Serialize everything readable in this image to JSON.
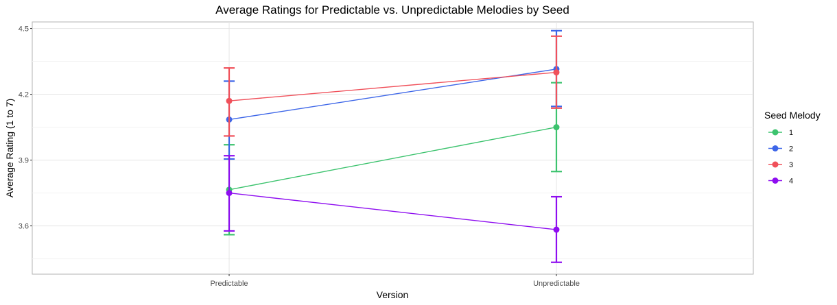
{
  "chart_data": {
    "type": "line",
    "title": "Average Ratings for Predictable vs. Unpredictable Melodies by Seed",
    "xlabel": "Version",
    "ylabel": "Average Rating (1 to 7)",
    "categories": [
      "Predictable",
      "Unpredictable"
    ],
    "ylim": [
      3.38,
      4.53
    ],
    "yticks": [
      3.6,
      3.9,
      4.2,
      4.5
    ],
    "ytick_labels": [
      "3.6",
      "3.9",
      "4.2",
      "4.5"
    ],
    "grid": true,
    "legend_position": "right",
    "legend_title": "Seed Melody",
    "series": [
      {
        "name": "1",
        "color": "#3cc36e",
        "values": [
          3.765,
          4.05
        ],
        "err_low": [
          3.56,
          3.848
        ],
        "err_high": [
          3.97,
          4.253
        ]
      },
      {
        "name": "2",
        "color": "#3d66e8",
        "values": [
          4.085,
          4.315
        ],
        "err_low": [
          3.905,
          4.145
        ],
        "err_high": [
          4.26,
          4.49
        ]
      },
      {
        "name": "3",
        "color": "#f0505a",
        "values": [
          4.17,
          4.3
        ],
        "err_low": [
          4.01,
          4.137
        ],
        "err_high": [
          4.32,
          4.465
        ]
      },
      {
        "name": "4",
        "color": "#8e0df0",
        "values": [
          3.75,
          3.583
        ],
        "err_low": [
          3.577,
          3.434
        ],
        "err_high": [
          3.92,
          3.733
        ]
      }
    ]
  }
}
